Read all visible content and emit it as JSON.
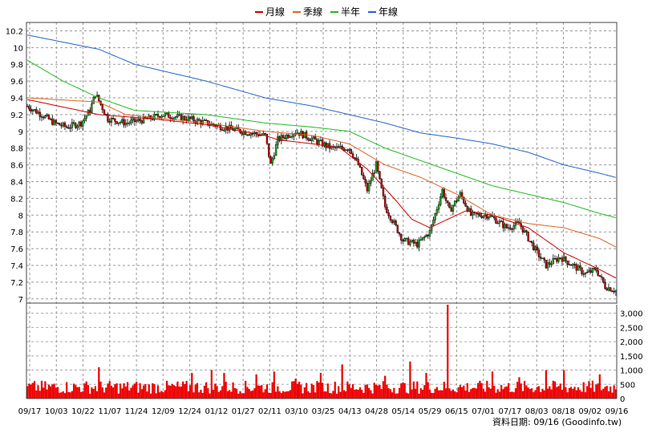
{
  "chart_data": {
    "type": "candlestick",
    "legend": [
      {
        "name": "月線",
        "color": "#cc0000"
      },
      {
        "name": "季線",
        "color": "#dd6622"
      },
      {
        "name": "半年",
        "color": "#22bb22"
      },
      {
        "name": "年線",
        "color": "#2266cc"
      }
    ],
    "price_axis": {
      "ticks": [
        7,
        7.2,
        7.4,
        7.6,
        7.8,
        8,
        8.2,
        8.4,
        8.6,
        8.8,
        9,
        9.2,
        9.4,
        9.6,
        9.8,
        10,
        10.2
      ],
      "range": [
        6.95,
        10.3
      ]
    },
    "volume_axis": {
      "ticks": [
        "0",
        "500",
        "1,000",
        "1,500",
        "2,000",
        "2,500",
        "3,000"
      ],
      "values": [
        0,
        500,
        1000,
        1500,
        2000,
        2500,
        3000
      ],
      "max": 3300
    },
    "x_labels": [
      "09/17",
      "10/03",
      "10/22",
      "11/07",
      "11/24",
      "12/09",
      "12/24",
      "01/12",
      "01/27",
      "02/11",
      "03/10",
      "03/25",
      "04/13",
      "04/28",
      "05/14",
      "05/29",
      "06/15",
      "07/01",
      "07/17",
      "08/03",
      "08/18",
      "09/02",
      "09/16"
    ],
    "price_path": [
      [
        0,
        9.3
      ],
      [
        8,
        9.2
      ],
      [
        15,
        9.1
      ],
      [
        22,
        9.05
      ],
      [
        30,
        9.1
      ],
      [
        35,
        9.25
      ],
      [
        38,
        9.45
      ],
      [
        45,
        9.15
      ],
      [
        55,
        9.1
      ],
      [
        68,
        9.15
      ],
      [
        75,
        9.2
      ],
      [
        90,
        9.15
      ],
      [
        100,
        9.1
      ],
      [
        110,
        9.05
      ],
      [
        120,
        9.0
      ],
      [
        133,
        8.95
      ],
      [
        136,
        8.6
      ],
      [
        140,
        8.9
      ],
      [
        150,
        9.0
      ],
      [
        160,
        8.9
      ],
      [
        170,
        8.8
      ],
      [
        180,
        8.8
      ],
      [
        185,
        8.6
      ],
      [
        190,
        8.3
      ],
      [
        195,
        8.6
      ],
      [
        200,
        8.1
      ],
      [
        205,
        7.9
      ],
      [
        210,
        7.7
      ],
      [
        218,
        7.65
      ],
      [
        225,
        7.8
      ],
      [
        232,
        8.3
      ],
      [
        236,
        8.05
      ],
      [
        242,
        8.25
      ],
      [
        248,
        8.0
      ],
      [
        258,
        8.0
      ],
      [
        268,
        7.85
      ],
      [
        275,
        7.9
      ],
      [
        285,
        7.55
      ],
      [
        290,
        7.4
      ],
      [
        298,
        7.5
      ],
      [
        305,
        7.4
      ],
      [
        312,
        7.3
      ],
      [
        318,
        7.35
      ],
      [
        323,
        7.15
      ],
      [
        329,
        7.1
      ]
    ],
    "candle_count": 330,
    "moving_averages": {
      "月線": [
        [
          0,
          9.38
        ],
        [
          40,
          9.2
        ],
        [
          70,
          9.15
        ],
        [
          100,
          9.08
        ],
        [
          133,
          8.95
        ],
        [
          140,
          8.9
        ],
        [
          160,
          8.85
        ],
        [
          175,
          8.8
        ],
        [
          190,
          8.55
        ],
        [
          205,
          8.2
        ],
        [
          215,
          7.95
        ],
        [
          225,
          7.85
        ],
        [
          235,
          7.95
        ],
        [
          245,
          8.05
        ],
        [
          260,
          8.0
        ],
        [
          280,
          7.85
        ],
        [
          300,
          7.55
        ],
        [
          320,
          7.35
        ],
        [
          329,
          7.25
        ]
      ],
      "季線": [
        [
          0,
          9.4
        ],
        [
          40,
          9.35
        ],
        [
          55,
          9.2
        ],
        [
          100,
          9.1
        ],
        [
          133,
          9.0
        ],
        [
          160,
          8.95
        ],
        [
          180,
          8.85
        ],
        [
          200,
          8.6
        ],
        [
          220,
          8.45
        ],
        [
          240,
          8.25
        ],
        [
          260,
          8.0
        ],
        [
          280,
          7.9
        ],
        [
          300,
          7.85
        ],
        [
          320,
          7.72
        ],
        [
          329,
          7.62
        ]
      ],
      "半年": [
        [
          0,
          9.85
        ],
        [
          20,
          9.6
        ],
        [
          40,
          9.4
        ],
        [
          60,
          9.25
        ],
        [
          100,
          9.2
        ],
        [
          133,
          9.1
        ],
        [
          160,
          9.05
        ],
        [
          180,
          9.0
        ],
        [
          200,
          8.8
        ],
        [
          220,
          8.65
        ],
        [
          240,
          8.5
        ],
        [
          260,
          8.35
        ],
        [
          280,
          8.25
        ],
        [
          300,
          8.15
        ],
        [
          320,
          8.02
        ],
        [
          329,
          7.97
        ]
      ],
      "年線": [
        [
          0,
          10.15
        ],
        [
          40,
          9.98
        ],
        [
          60,
          9.8
        ],
        [
          100,
          9.6
        ],
        [
          133,
          9.4
        ],
        [
          160,
          9.3
        ],
        [
          200,
          9.1
        ],
        [
          220,
          8.98
        ],
        [
          240,
          8.92
        ],
        [
          260,
          8.85
        ],
        [
          280,
          8.75
        ],
        [
          300,
          8.6
        ],
        [
          320,
          8.5
        ],
        [
          329,
          8.45
        ]
      ]
    },
    "volume_spikes": [
      [
        40,
        1100
      ],
      [
        92,
        900
      ],
      [
        103,
        1000
      ],
      [
        110,
        900
      ],
      [
        128,
        850
      ],
      [
        138,
        950
      ],
      [
        150,
        700
      ],
      [
        164,
        900
      ],
      [
        176,
        1200
      ],
      [
        200,
        800
      ],
      [
        214,
        1300
      ],
      [
        223,
        900
      ],
      [
        235,
        3300
      ],
      [
        260,
        950
      ],
      [
        275,
        750
      ],
      [
        290,
        1000
      ],
      [
        300,
        1000
      ],
      [
        320,
        850
      ]
    ],
    "volume_base": 420,
    "up_color": "#22aa22",
    "down_color": "#cc0000",
    "volume_color": "#ee0000"
  },
  "credit": "資料日期: 09/16  (Goodinfo.tw)"
}
